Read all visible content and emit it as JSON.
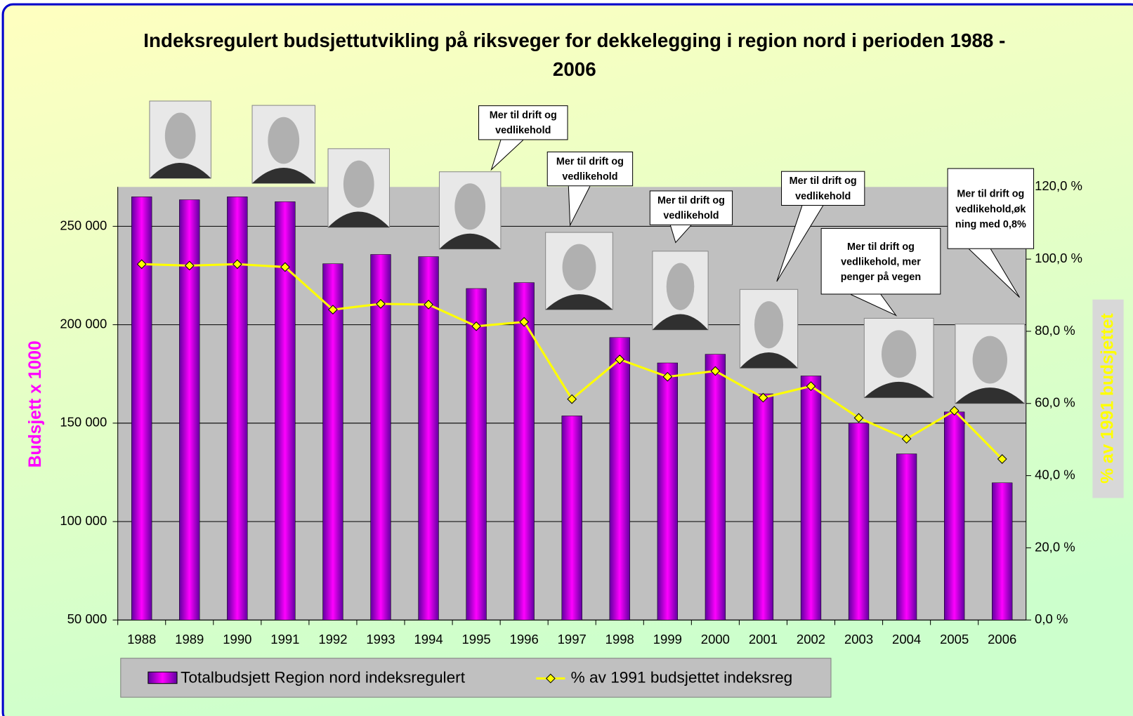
{
  "chart_data": {
    "type": "bar_line",
    "title": "Indeksregulert budsjettutvikling på riksveger for dekkelegging i region nord i perioden 1988 - 2006",
    "y_label": "Budsjett x 1000",
    "y2_label": "% av 1991 budsjettet",
    "categories": [
      "1988",
      "1989",
      "1990",
      "1991",
      "1992",
      "1993",
      "1994",
      "1995",
      "1996",
      "1997",
      "1998",
      "1999",
      "2000",
      "2001",
      "2002",
      "2003",
      "2004",
      "2005",
      "2006"
    ],
    "series": [
      {
        "name": "Totalbudsjett Region nord indeksregulert",
        "type": "bar",
        "color": "#ff00ff",
        "values": [
          265000,
          263500,
          265000,
          262500,
          231000,
          235700,
          234600,
          218400,
          221400,
          153700,
          193500,
          180600,
          185000,
          164900,
          174000,
          150000,
          134400,
          155700,
          119700
        ]
      },
      {
        "name": "% av 1991 budsjettet indeksreg",
        "type": "line",
        "axis": "y2",
        "color": "#ffff00",
        "values": [
          98.6,
          98.2,
          98.6,
          97.8,
          86.0,
          87.6,
          87.4,
          81.4,
          82.6,
          61.2,
          72.2,
          67.4,
          69.0,
          61.6,
          64.8,
          56.0,
          50.2,
          58.0,
          44.6
        ]
      }
    ],
    "ylim": [
      50000,
      270000
    ],
    "yticks": [
      {
        "value": 50000,
        "label": "50 000"
      },
      {
        "value": 100000,
        "label": "100 000"
      },
      {
        "value": 150000,
        "label": "150 000"
      },
      {
        "value": 200000,
        "label": "200 000"
      },
      {
        "value": 250000,
        "label": "250 000"
      }
    ],
    "y2lim": [
      0,
      120
    ],
    "y2ticks": [
      {
        "value": 0,
        "label": "0,0 %"
      },
      {
        "value": 20,
        "label": "20,0 %"
      },
      {
        "value": 40,
        "label": "40,0 %"
      },
      {
        "value": 60,
        "label": "60,0 %"
      },
      {
        "value": 80,
        "label": "80,0 %"
      },
      {
        "value": 100,
        "label": "100,0 %"
      },
      {
        "value": 120,
        "label": "120,0 %"
      }
    ],
    "grid": true,
    "legend": "bottom",
    "annotations": [
      "Mer til drift og vedlikehold",
      "Mer til drift og vedlikehold",
      "Mer til drift og vedlikehold",
      "Mer til drift og vedlikehold",
      "Mer til drift og vedlikehold, mer penger på vegen",
      "Mer til drift og vedlikehold,øk ning med 0,8%"
    ]
  }
}
